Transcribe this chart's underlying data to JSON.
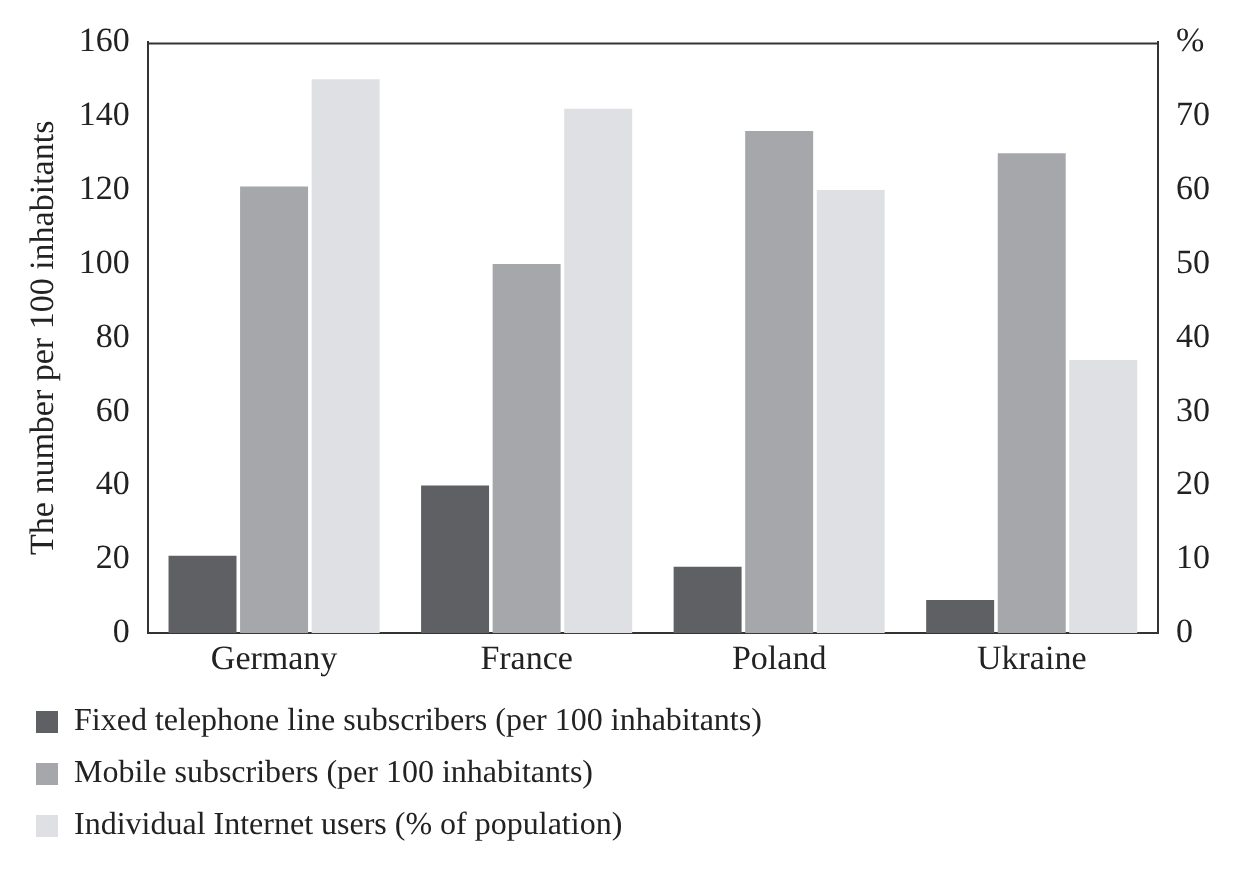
{
  "chart_data": {
    "type": "bar",
    "ylabel": "The number per 100 inhabitants",
    "categories": [
      "Germany",
      "France",
      "Poland",
      "Ukraine"
    ],
    "series": [
      {
        "name": "Fixed telephone line subscribers (per 100 inhabitants)",
        "color": "#5f6063",
        "values": [
          21,
          40,
          18,
          9
        ]
      },
      {
        "name": "Mobile subscribers (per 100 inhabitants)",
        "color": "#a6a7ab",
        "values": [
          121,
          100,
          136,
          130
        ]
      },
      {
        "name": "Individual Internet users (% of population)",
        "color": "#dfe0e3",
        "values": [
          75,
          71,
          60,
          37
        ],
        "axis": "y2"
      }
    ],
    "ylim": [
      0,
      160
    ],
    "yticks": [
      0,
      20,
      40,
      60,
      80,
      100,
      120,
      140,
      160
    ],
    "y2lim": [
      0,
      80
    ],
    "y2ticks": [
      0,
      10,
      20,
      30,
      40,
      50,
      60,
      70,
      {
        "value": 80,
        "label": "%"
      }
    ],
    "grid": false,
    "legend": "bottom"
  }
}
